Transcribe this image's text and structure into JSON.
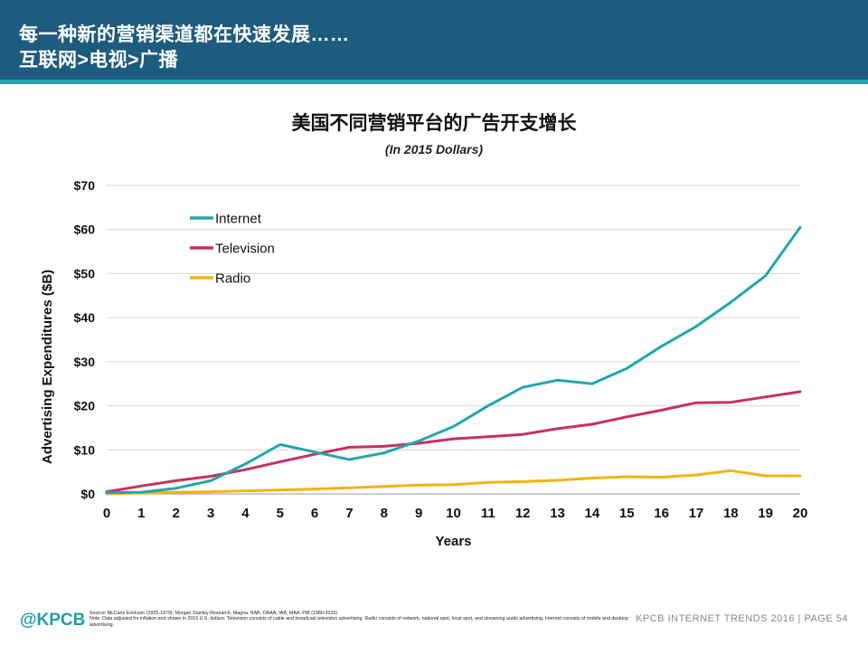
{
  "header": {
    "line1": "每一种新的营销渠道都在快速发展……",
    "line2": "互联网>电视>广播"
  },
  "footer": {
    "logo": "@KPCB",
    "source": "Source: McCann Erickson (1925-1979); Morgan Stanley Research, Magna, RAB, OAAA, IAB, MAA, PIB (1980-2015)",
    "note": "Note: Data adjusted for inflation and shown in 2015 U.S. dollars. Television consists of cable and broadcast television advertising. Radio consists of network, national spot, local spot, and streaming audio advertising. Internet consists of mobile and desktop advertising.",
    "page": "KPCB INTERNET TRENDS 2016  |  PAGE 54"
  },
  "colors": {
    "header": "#1d5c7e",
    "stripe": "#21a4b5",
    "internet": "#21a7ad",
    "television": "#c8305f",
    "radio": "#f3b40f",
    "grid": "#d6d6d6"
  },
  "chart_data": {
    "type": "line",
    "title": "美国不同营销平台的广告开支增长",
    "subtitle": "(In 2015 Dollars)",
    "xlabel": "Years",
    "ylabel": "Advertising Expenditures ($B)",
    "x": [
      0,
      1,
      2,
      3,
      4,
      5,
      6,
      7,
      8,
      9,
      10,
      11,
      12,
      13,
      14,
      15,
      16,
      17,
      18,
      19,
      20
    ],
    "xlim": [
      0,
      20
    ],
    "ylim": [
      0,
      70
    ],
    "yticks": [
      0,
      10,
      20,
      30,
      40,
      50,
      60,
      70
    ],
    "ytick_labels": [
      "$0",
      "$10",
      "$20",
      "$30",
      "$40",
      "$50",
      "$60",
      "$70"
    ],
    "xtick_labels": [
      "0",
      "1",
      "2",
      "3",
      "4",
      "5",
      "6",
      "7",
      "8",
      "9",
      "10",
      "11",
      "12",
      "13",
      "14",
      "15",
      "16",
      "17",
      "18",
      "19",
      "20"
    ],
    "grid": true,
    "legend": "top-left",
    "series": [
      {
        "name": "Internet",
        "color": "#21a7ad",
        "values": [
          0.3,
          0.4,
          1.3,
          3.0,
          6.8,
          11.2,
          9.5,
          7.8,
          9.3,
          12.0,
          15.3,
          20.0,
          24.2,
          25.8,
          25.0,
          28.5,
          33.5,
          38.0,
          43.5,
          49.5,
          60.5
        ]
      },
      {
        "name": "Television",
        "color": "#c8305f",
        "values": [
          0.5,
          1.8,
          3.0,
          4.0,
          5.5,
          7.3,
          9.0,
          10.6,
          10.8,
          11.5,
          12.5,
          13.0,
          13.5,
          14.8,
          15.8,
          17.5,
          19.0,
          20.7,
          20.8,
          22.0,
          23.2
        ]
      },
      {
        "name": "Radio",
        "color": "#f3b40f",
        "values": [
          0.0,
          0.2,
          0.4,
          0.5,
          0.7,
          0.9,
          1.1,
          1.4,
          1.7,
          2.0,
          2.1,
          2.6,
          2.8,
          3.1,
          3.6,
          3.9,
          3.8,
          4.3,
          5.3,
          4.1,
          4.1
        ]
      }
    ]
  }
}
